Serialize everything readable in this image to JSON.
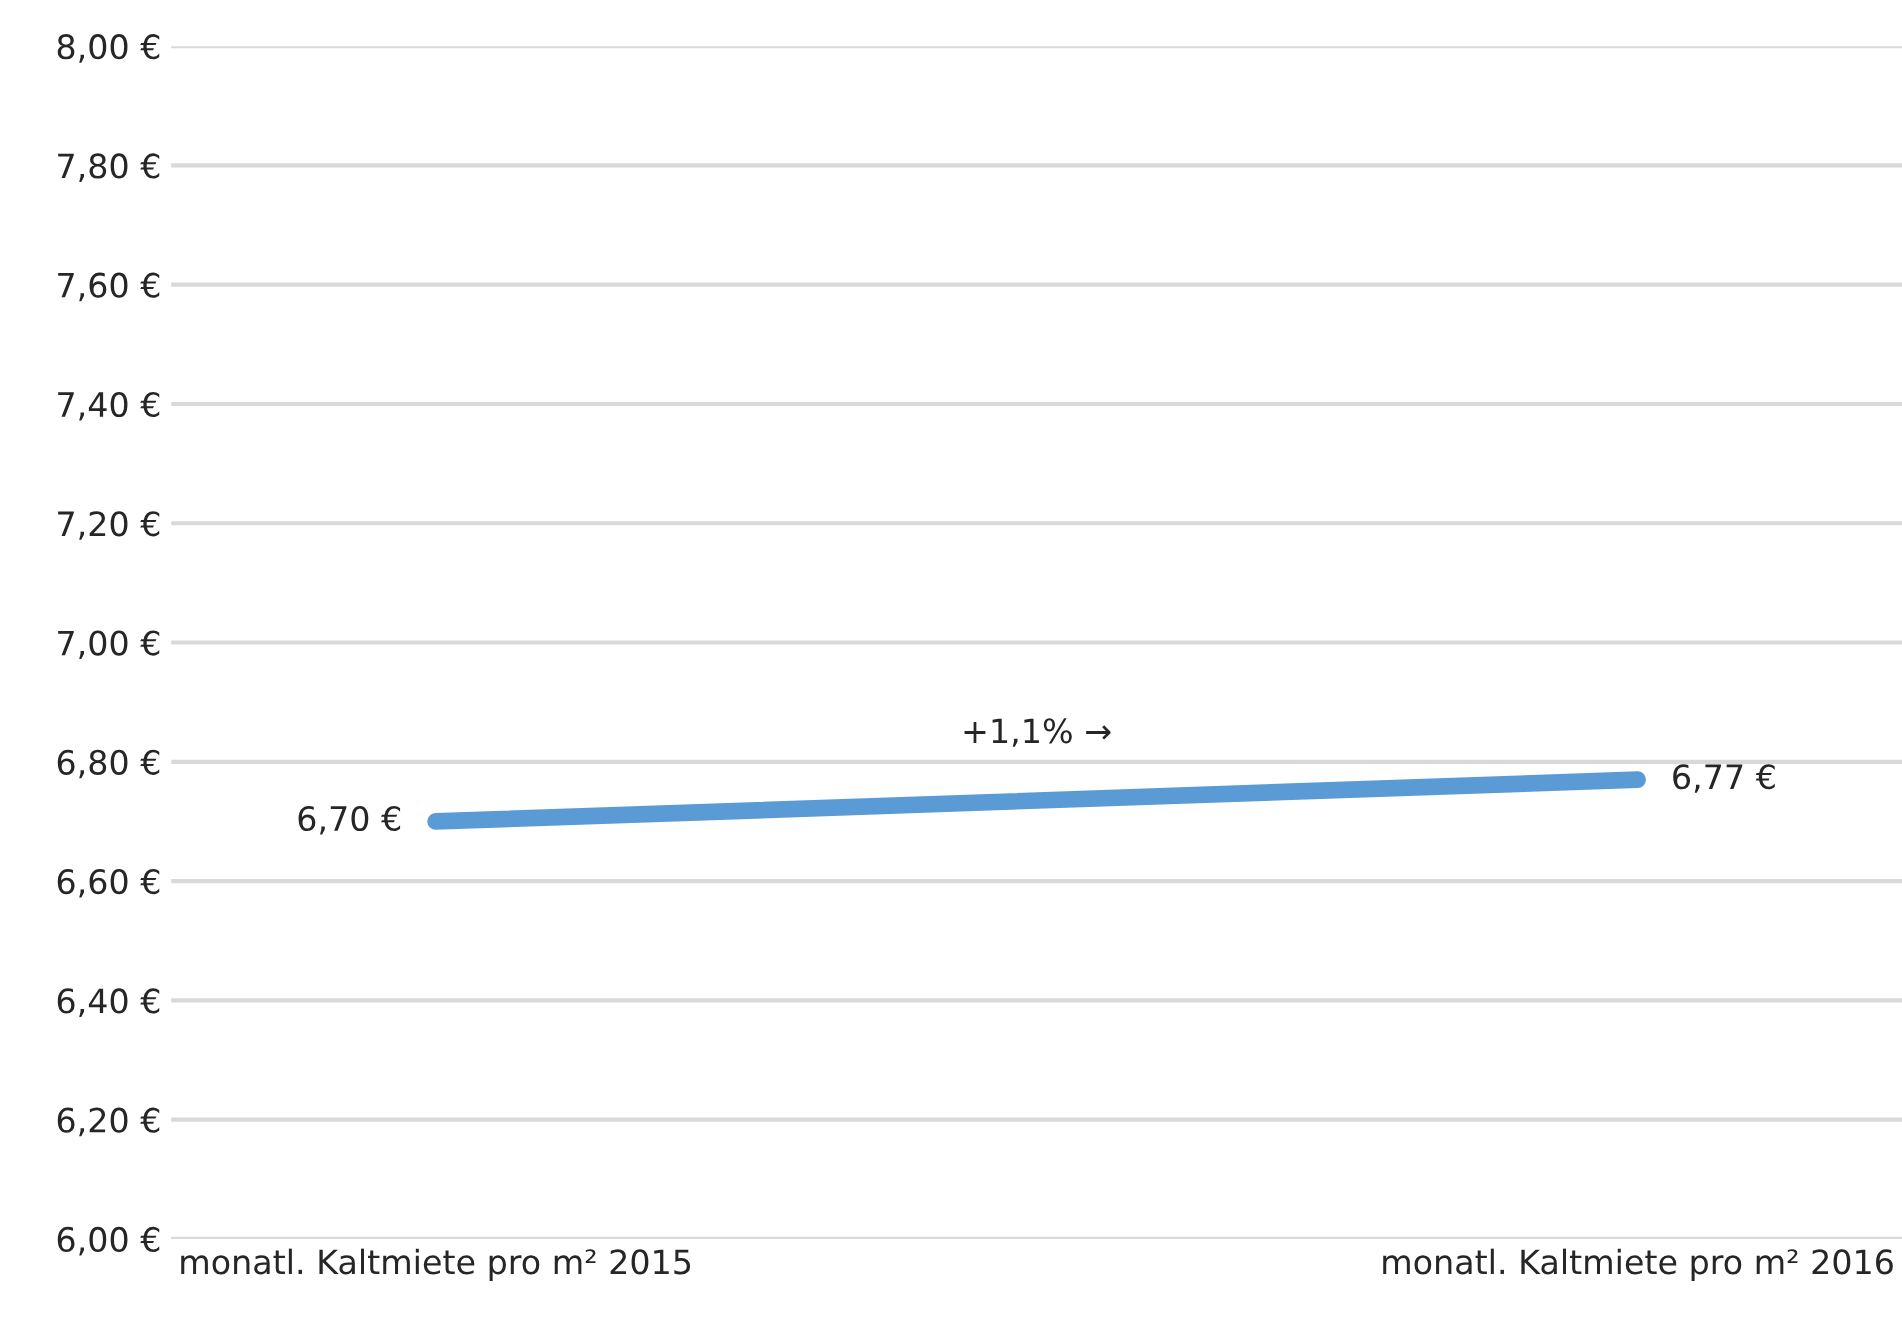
{
  "chart_data": {
    "type": "line",
    "categories": [
      "monatl. Kaltmiete pro m² 2015",
      "monatl. Kaltmiete pro m² 2016"
    ],
    "series": [
      {
        "color": "#5b9bd5",
        "values": [
          6.7,
          6.77
        ],
        "value_labels": [
          "6,70 €",
          "6,77 €"
        ]
      }
    ],
    "ylim": [
      6.0,
      8.0
    ],
    "yticks": [
      {
        "value": 6.0,
        "label": "6,00 €"
      },
      {
        "value": 6.2,
        "label": "6,20 €"
      },
      {
        "value": 6.4,
        "label": "6,40 €"
      },
      {
        "value": 6.6,
        "label": "6,60 €"
      },
      {
        "value": 6.8,
        "label": "6,80 €"
      },
      {
        "value": 7.0,
        "label": "7,00 €"
      },
      {
        "value": 7.2,
        "label": "7,20 €"
      },
      {
        "value": 7.4,
        "label": "7,40 €"
      },
      {
        "value": 7.6,
        "label": "7,60 €"
      },
      {
        "value": 7.8,
        "label": "7,80 €"
      },
      {
        "value": 8.0,
        "label": "8,00 €"
      }
    ],
    "grid": "y",
    "annotations": [
      "+1,1% →"
    ]
  }
}
